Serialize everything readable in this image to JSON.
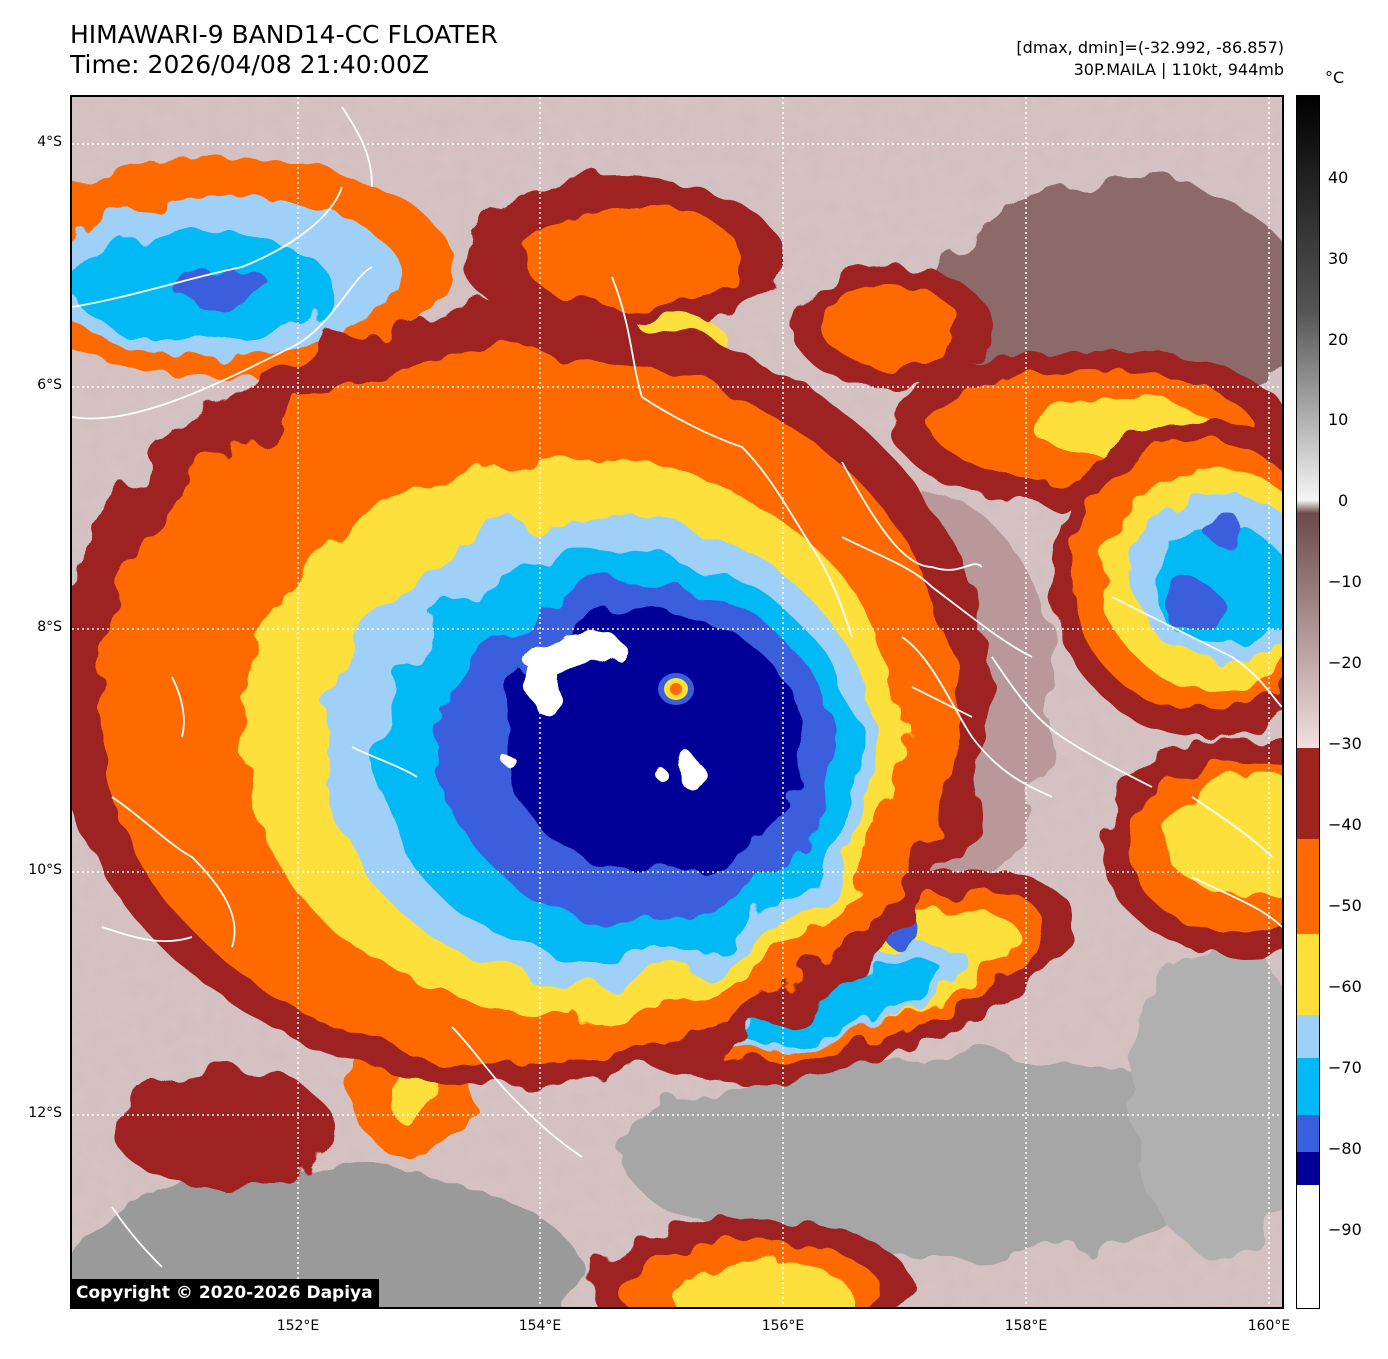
{
  "header": {
    "title_line1": "HIMAWARI-9 BAND14-CC FLOATER",
    "title_line2": "Time: 2026/04/08 21:40:00Z",
    "info_line1": "[dmax, dmin]=(-32.992, -86.857)",
    "info_line2": "30P.MAILA | 110kt, 944mb"
  },
  "map": {
    "lat_labels": [
      "4°S",
      "6°S",
      "8°S",
      "10°S",
      "12°S"
    ],
    "lon_labels": [
      "152°E",
      "154°E",
      "156°E",
      "158°E",
      "160°E"
    ],
    "extent": {
      "lon_min": 150.0,
      "lon_max": 160.0,
      "lat_min": -13.6,
      "lat_max": -3.6
    },
    "storm": {
      "name": "30P.MAILA",
      "intensity_kt": 110,
      "pressure_mb": 944,
      "eye_lon": 155.1,
      "eye_lat": -8.5
    },
    "copyright": "Copyright © 2020-2026 Dapiya"
  },
  "colorbar": {
    "unit": "°C",
    "ticks": [
      "40",
      "30",
      "20",
      "10",
      "0",
      "−10",
      "−20",
      "−30",
      "−40",
      "−50",
      "−60",
      "−70",
      "−80",
      "−90"
    ],
    "colors": {
      "below_-85": "#ffffff",
      "-85_-80": "#000099",
      "-80_-75": "#3a5fdc",
      "-75_-70": "#00b9f5",
      "-70_-65": "#9fd0f7",
      "-65_-55": "#fde03a",
      "-55_-45": "#ff6a00",
      "-45_-34": "#9e2420",
      "warm_low": "#f3dfdf",
      "warm_mid": "#7d5858",
      "warm_high": "#000000"
    }
  }
}
